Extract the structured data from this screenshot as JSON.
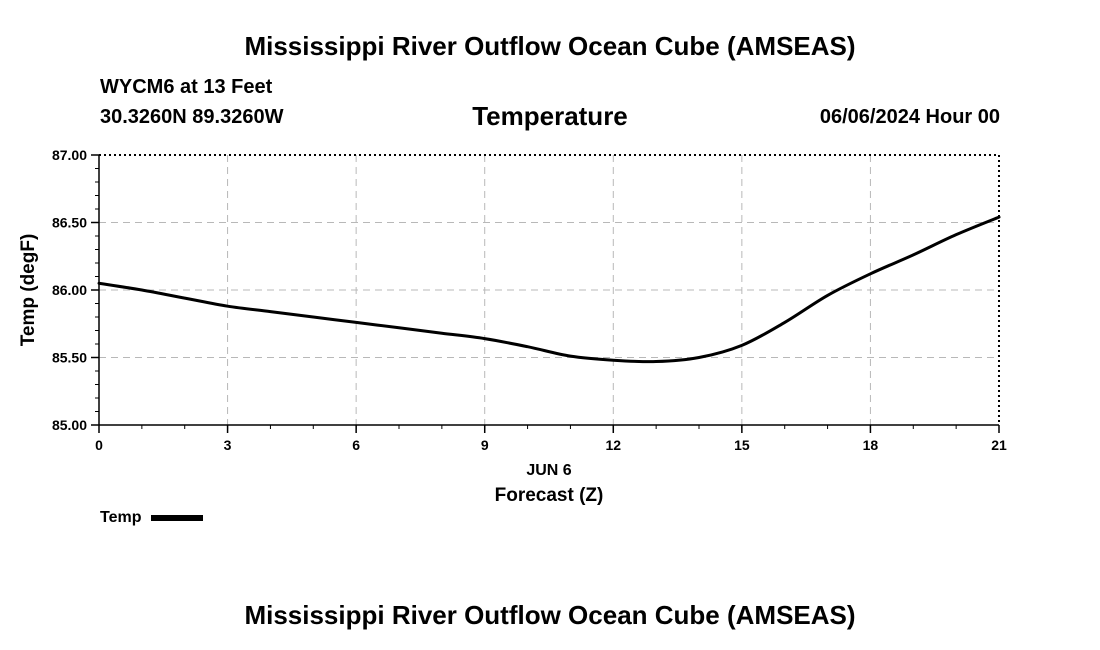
{
  "header": {
    "title": "Mississippi River Outflow Ocean Cube (AMSEAS)",
    "station": "WYCM6 at 13 Feet",
    "coordinates": "30.3260N  89.3260W",
    "variable": "Temperature",
    "datetime": "06/06/2024 Hour 00"
  },
  "footer": {
    "title": "Mississippi River Outflow Ocean Cube (AMSEAS)"
  },
  "chart_data": {
    "type": "line",
    "title": "Temperature",
    "xlabel": "Forecast (Z)",
    "xlabel_date": "JUN 6",
    "ylabel": "Temp (degF)",
    "xlim": [
      0,
      21
    ],
    "ylim": [
      85.0,
      87.0
    ],
    "x_ticks": [
      0,
      3,
      6,
      9,
      12,
      15,
      18,
      21
    ],
    "x_tick_labels": [
      "0",
      "3",
      "6",
      "9",
      "12",
      "15",
      "18",
      "21"
    ],
    "y_ticks": [
      85.0,
      85.5,
      86.0,
      86.5,
      87.0
    ],
    "y_tick_labels": [
      "85.00",
      "85.50",
      "86.00",
      "86.50",
      "87.00"
    ],
    "grid": true,
    "series": [
      {
        "name": "Temp",
        "color": "#000000",
        "x": [
          0,
          1,
          2,
          3,
          4,
          5,
          6,
          7,
          8,
          9,
          10,
          11,
          12,
          13,
          14,
          15,
          16,
          17,
          18,
          19,
          20,
          21
        ],
        "values": [
          86.05,
          86.0,
          85.94,
          85.88,
          85.84,
          85.8,
          85.76,
          85.72,
          85.68,
          85.64,
          85.58,
          85.51,
          85.48,
          85.47,
          85.5,
          85.59,
          85.76,
          85.96,
          86.12,
          86.26,
          86.41,
          86.54
        ]
      }
    ]
  },
  "legend": {
    "items": [
      {
        "label": "Temp",
        "color": "#000000"
      }
    ]
  }
}
